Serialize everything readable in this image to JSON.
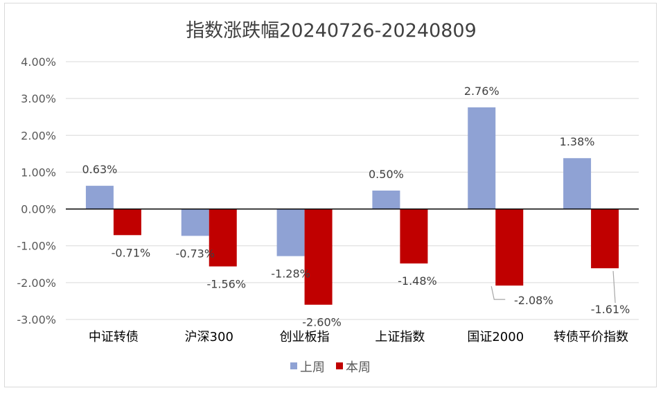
{
  "chart_data": {
    "type": "bar",
    "title": "指数涨跌幅20240726-20240809",
    "categories": [
      "中证转债",
      "沪深300",
      "创业板指",
      "上证指数",
      "国证2000",
      "转债平价指数"
    ],
    "series": [
      {
        "name": "上周",
        "color": "#8FA2D4",
        "values": [
          0.63,
          -0.73,
          -1.28,
          0.5,
          2.76,
          1.38
        ],
        "labels": [
          "0.63%",
          "-0.73%",
          "-1.28%",
          "0.50%",
          "2.76%",
          "1.38%"
        ]
      },
      {
        "name": "本周",
        "color": "#C00000",
        "values": [
          -0.71,
          -1.56,
          -2.6,
          -1.48,
          -2.08,
          -1.61
        ],
        "labels": [
          "-0.71%",
          "-1.56%",
          "-2.60%",
          "-1.48%",
          "-2.08%",
          "-1.61%"
        ]
      }
    ],
    "ylim": [
      -3.0,
      4.0
    ],
    "yticks": [
      4,
      3,
      2,
      1,
      0,
      -1,
      -2,
      -3
    ],
    "ytick_labels": [
      "4.00%",
      "3.00%",
      "2.00%",
      "1.00%",
      "0.00%",
      "-1.00%",
      "-2.00%",
      "-3.00%"
    ],
    "grid": true,
    "legend_position": "bottom"
  }
}
